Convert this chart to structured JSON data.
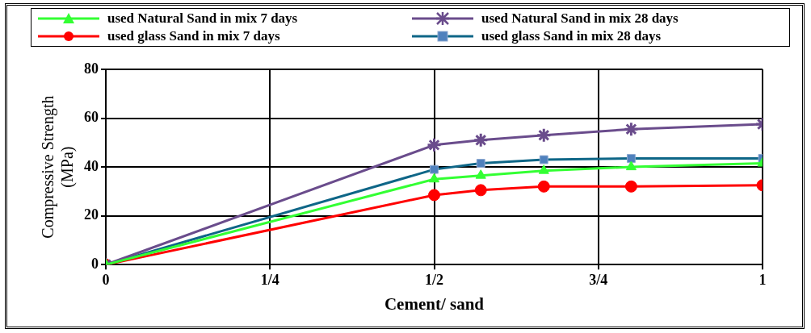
{
  "chart_data": {
    "type": "line",
    "xlabel": "Cement/ sand",
    "ylabel": "Compressive Strength (MPa)",
    "x": [
      0,
      0.5,
      0.571,
      0.667,
      0.8,
      1
    ],
    "xlim": [
      0,
      1
    ],
    "xticks": [
      0,
      {
        "value": 0.25,
        "label": "1/4"
      },
      {
        "value": 0.5,
        "label": "1/2"
      },
      {
        "value": 0.75,
        "label": "3/4"
      },
      1
    ],
    "ylim": [
      0,
      80
    ],
    "yticks": [
      0,
      20,
      40,
      60,
      80
    ],
    "grid": true,
    "legend": "top",
    "line_style": "solid",
    "series": [
      {
        "name": "used Natural Sand in mix 7 days",
        "color": "#33ff33",
        "marker": "triangle",
        "values": [
          0,
          35,
          36.5,
          38.5,
          40,
          41.5
        ]
      },
      {
        "name": "used Natural Sand in mix 28 days",
        "color": "#6a4c8c",
        "marker": "cross",
        "values": [
          0,
          49,
          51,
          53,
          55.5,
          57.5
        ]
      },
      {
        "name": "used glass Sand in mix 7 days",
        "color": "#ff0000",
        "marker": "circle",
        "values": [
          0,
          28.5,
          30.5,
          32,
          32,
          32.5
        ]
      },
      {
        "name": "used glass Sand in mix 28 days",
        "color": "#0e6687",
        "marker": "square",
        "values": [
          0,
          39,
          41.5,
          43,
          43.5,
          43.5
        ]
      }
    ]
  }
}
